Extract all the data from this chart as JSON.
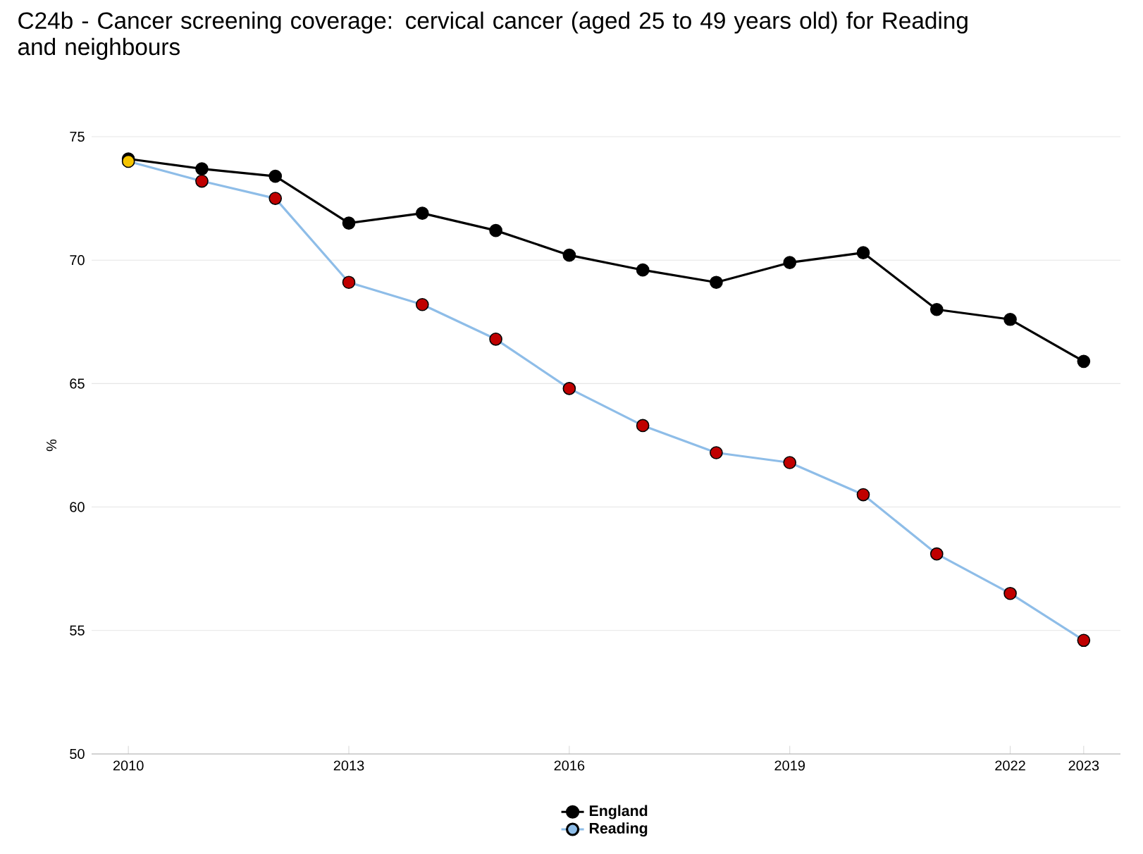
{
  "chart_data": {
    "type": "line",
    "title": "C24b - Cancer screening coverage: cervical cancer (aged 25 to 49 years old) for Reading and neighbours",
    "ylabel": "%",
    "x": [
      2010,
      2011,
      2012,
      2013,
      2014,
      2015,
      2016,
      2017,
      2018,
      2019,
      2020,
      2021,
      2022,
      2023
    ],
    "series": [
      {
        "name": "England",
        "color": "#000000",
        "values": [
          74.1,
          73.7,
          73.4,
          71.5,
          71.9,
          71.2,
          70.2,
          69.6,
          69.1,
          69.9,
          70.3,
          68.0,
          67.6,
          65.9
        ]
      },
      {
        "name": "Reading",
        "color": "#8ebde8",
        "colors": [
          "#f5c400",
          "#c00000",
          "#c00000",
          "#c00000",
          "#c00000",
          "#c00000",
          "#c00000",
          "#c00000",
          "#c00000",
          "#c00000",
          "#c00000",
          "#c00000",
          "#c00000",
          "#c00000"
        ],
        "values": [
          74.0,
          73.2,
          72.5,
          69.1,
          68.2,
          66.8,
          64.8,
          63.3,
          62.2,
          61.8,
          60.5,
          58.1,
          56.5,
          54.6
        ]
      }
    ],
    "xlim": [
      2009.5,
      2023.5
    ],
    "xticks": [
      2010,
      2013,
      2016,
      2019,
      2022,
      2023
    ],
    "ylim": [
      50,
      75
    ],
    "yticks": [
      50,
      55,
      60,
      65,
      70,
      75
    ],
    "grid": "y",
    "legend": "bottom",
    "marker": "circle",
    "line_style": "solid"
  }
}
